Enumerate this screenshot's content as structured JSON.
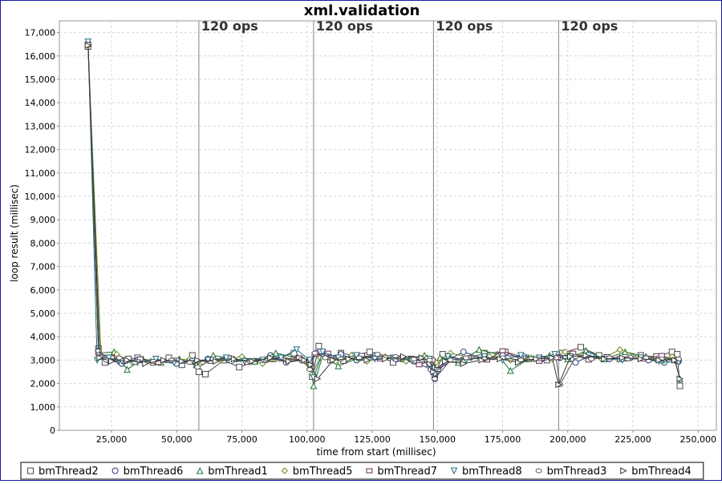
{
  "chart_data": {
    "type": "line",
    "title": "xml.validation",
    "xlabel": "time from start (millisec)",
    "ylabel": "loop result (millisec)",
    "xlim": [
      5000,
      257000
    ],
    "ylim": [
      0,
      17500
    ],
    "x_ticks": [
      25000,
      50000,
      75000,
      100000,
      125000,
      150000,
      175000,
      200000,
      225000,
      250000
    ],
    "x_tick_labels": [
      "25,000",
      "50,000",
      "75,000",
      "100,000",
      "125,000",
      "150,000",
      "175,000",
      "200,000",
      "225,000",
      "250,000"
    ],
    "y_ticks": [
      0,
      1000,
      2000,
      3000,
      4000,
      5000,
      6000,
      7000,
      8000,
      9000,
      10000,
      11000,
      12000,
      13000,
      14000,
      15000,
      16000,
      17000
    ],
    "y_tick_labels": [
      "0",
      "1,000",
      "2,000",
      "3,000",
      "4,000",
      "5,000",
      "6,000",
      "7,000",
      "8,000",
      "9,000",
      "10,000",
      "11,000",
      "12,000",
      "13,000",
      "14,000",
      "15,000",
      "16,000",
      "17,000"
    ],
    "grid": true,
    "legend_position": "bottom",
    "markers": [
      {
        "x": 58500,
        "label": "120 ops"
      },
      {
        "x": 102500,
        "label": "120 ops"
      },
      {
        "x": 148500,
        "label": "120 ops"
      },
      {
        "x": 196500,
        "label": "120 ops"
      }
    ],
    "series": [
      {
        "name": "bmThread2",
        "marker": "square",
        "color": "#4a4a4a",
        "x": [
          16000,
          20000,
          22500,
          25500,
          28500,
          31500,
          35000,
          41000,
          47000,
          52000,
          56000,
          58500,
          61000,
          68000,
          74000,
          80000,
          87000,
          95000,
          101000,
          102000,
          104500,
          109000,
          113000,
          118000,
          124000,
          133000,
          140000,
          147000,
          149000,
          152000,
          160000,
          168000,
          176000,
          184000,
          192000,
          198000,
          205000,
          212000,
          220000,
          228000,
          234000,
          240000,
          242000,
          243000
        ],
        "y": [
          16400,
          3500,
          2900,
          3100,
          2950,
          3050,
          3100,
          2900,
          3100,
          2800,
          3200,
          2500,
          2400,
          3000,
          2700,
          2950,
          3050,
          3300,
          2950,
          2300,
          3600,
          3000,
          3300,
          3200,
          3350,
          2900,
          3050,
          2850,
          2300,
          3250,
          3000,
          3300,
          3350,
          3100,
          3000,
          3300,
          3550,
          3200,
          3050,
          3200,
          3150,
          3350,
          3250,
          1900
        ]
      },
      {
        "name": "bmThread6",
        "marker": "circle",
        "color": "#2a3a7a",
        "x": [
          16000,
          20000,
          24000,
          29000,
          35000,
          42000,
          50000,
          57000,
          62000,
          70000,
          78000,
          86000,
          92000,
          98000,
          101500,
          103500,
          107000,
          113000,
          119000,
          126000,
          134000,
          141000,
          147500,
          149000,
          153000,
          160000,
          168000,
          175000,
          183000,
          190000,
          197000,
          203000,
          209000,
          216000,
          224000,
          231000,
          237000,
          242500
        ],
        "y": [
          16500,
          3400,
          3000,
          2850,
          3000,
          2950,
          2850,
          2900,
          3050,
          3000,
          2950,
          3200,
          2900,
          3000,
          2850,
          3300,
          3150,
          3250,
          3000,
          3200,
          3050,
          2950,
          2600,
          2200,
          2950,
          3350,
          3050,
          3200,
          3150,
          3050,
          3100,
          2900,
          3200,
          3050,
          3100,
          3000,
          2900,
          2950
        ]
      },
      {
        "name": "bmThread1",
        "marker": "triangle-up",
        "color": "#1c6e2c",
        "x": [
          16000,
          20500,
          26000,
          31000,
          37000,
          44000,
          51000,
          57500,
          64000,
          72000,
          80000,
          88000,
          96000,
          101000,
          102500,
          106000,
          112000,
          120000,
          128000,
          137000,
          145000,
          148500,
          151000,
          158000,
          166000,
          173000,
          178000,
          185000,
          193000,
          200000,
          207000,
          214000,
          222000,
          230000,
          236000,
          241000,
          243000
        ],
        "y": [
          16550,
          3300,
          3350,
          2600,
          3050,
          2900,
          3050,
          2800,
          3200,
          3050,
          2950,
          3300,
          3100,
          3000,
          1900,
          3200,
          2750,
          3100,
          3150,
          3050,
          3200,
          2700,
          3100,
          2900,
          3450,
          3250,
          2550,
          3050,
          3200,
          3050,
          3400,
          3050,
          3350,
          3150,
          3000,
          3050,
          2200
        ]
      },
      {
        "name": "bmThread5",
        "marker": "diamond",
        "color": "#6f8a23",
        "x": [
          16000,
          21000,
          27000,
          33000,
          40000,
          48000,
          55000,
          60000,
          67000,
          75000,
          83000,
          91000,
          99000,
          102000,
          105000,
          111000,
          117000,
          123000,
          130000,
          138000,
          146000,
          149500,
          155000,
          163000,
          170000,
          178000,
          186000,
          194000,
          199000,
          206000,
          213000,
          220000,
          227000,
          234000,
          240000,
          242500
        ],
        "y": [
          16450,
          3200,
          3250,
          2900,
          2950,
          3000,
          3050,
          2900,
          3000,
          3150,
          2850,
          3100,
          2950,
          2400,
          3100,
          2950,
          3200,
          2950,
          3150,
          2950,
          3100,
          2900,
          3300,
          3100,
          3150,
          3000,
          3100,
          3050,
          3350,
          3200,
          3050,
          3450,
          3150,
          3000,
          3150,
          3000
        ]
      },
      {
        "name": "bmThread7",
        "marker": "rect-flat",
        "color": "#6a2a4a",
        "x": [
          16000,
          20000,
          25000,
          30000,
          36000,
          43000,
          50000,
          56000,
          63000,
          70000,
          77000,
          84000,
          90000,
          97000,
          101000,
          103000,
          108000,
          114000,
          121000,
          128000,
          136000,
          143000,
          148000,
          150000,
          156000,
          162000,
          169000,
          175000,
          182000,
          189000,
          196000,
          202000,
          208000,
          215000,
          222000,
          229000,
          236000,
          242000
        ],
        "y": [
          16500,
          3300,
          3100,
          2950,
          3050,
          2900,
          3000,
          2950,
          2950,
          3100,
          2900,
          3000,
          3050,
          3100,
          2900,
          3250,
          3300,
          2950,
          3200,
          3050,
          3100,
          2800,
          3000,
          2600,
          3000,
          3100,
          3000,
          3400,
          3050,
          2950,
          3100,
          3300,
          3000,
          3150,
          3050,
          3050,
          3200,
          2950
        ]
      },
      {
        "name": "bmThread8",
        "marker": "triangle-down",
        "color": "#1f6a80",
        "x": [
          16000,
          19500,
          24000,
          29000,
          35000,
          42000,
          49000,
          56000,
          62000,
          69000,
          76000,
          83000,
          90000,
          96000,
          101000,
          102500,
          106000,
          112000,
          119000,
          126000,
          133000,
          140000,
          147000,
          149000,
          154000,
          161000,
          168000,
          175000,
          182000,
          189000,
          195000,
          201000,
          208000,
          215000,
          221000,
          228000,
          235000,
          242500
        ],
        "y": [
          16600,
          3000,
          3100,
          2950,
          2900,
          3050,
          2900,
          2950,
          3000,
          3100,
          2950,
          3000,
          3100,
          3450,
          3000,
          2250,
          3350,
          3100,
          3200,
          3050,
          3100,
          3000,
          3050,
          2400,
          3150,
          3000,
          3150,
          3000,
          3200,
          3100,
          3250,
          3150,
          3200,
          3050,
          3000,
          3100,
          2950,
          2900
        ]
      },
      {
        "name": "bmThread3",
        "marker": "circle-small",
        "color": "#555555",
        "x": [
          16000,
          20000,
          23000,
          28000,
          34000,
          41000,
          48000,
          55000,
          58000,
          64000,
          71000,
          78000,
          85000,
          92000,
          98000,
          101000,
          103000,
          107000,
          113000,
          120000,
          127000,
          134000,
          141000,
          147000,
          149000,
          155000,
          161000,
          168000,
          175000,
          182000,
          189000,
          195500,
          197000,
          203000,
          209000,
          216000,
          223000,
          230000,
          236000,
          242500
        ],
        "y": [
          16500,
          3400,
          3000,
          3100,
          2900,
          2950,
          3000,
          2900,
          2700,
          3050,
          2950,
          2950,
          3050,
          3000,
          3050,
          2600,
          3300,
          3100,
          3050,
          3100,
          3250,
          3150,
          3050,
          3000,
          2200,
          3000,
          3100,
          3050,
          3100,
          3000,
          3050,
          3100,
          1950,
          3150,
          3050,
          3100,
          3050,
          3100,
          3050,
          3050
        ]
      },
      {
        "name": "bmThread4",
        "marker": "triangle-right",
        "color": "#3a3a3a",
        "x": [
          16000,
          20500,
          25000,
          31000,
          38000,
          45000,
          52000,
          58000,
          65000,
          72000,
          79000,
          86000,
          93000,
          99000,
          101500,
          104000,
          110000,
          116000,
          123000,
          130000,
          137000,
          144000,
          148500,
          153000,
          160000,
          167000,
          174000,
          181000,
          188000,
          194000,
          196500,
          201000,
          207000,
          214000,
          221000,
          228000,
          235000,
          241000,
          243000
        ],
        "y": [
          16450,
          3100,
          2950,
          3000,
          2850,
          3000,
          2950,
          3000,
          2950,
          3050,
          2950,
          3100,
          2950,
          3000,
          2800,
          2200,
          3000,
          3050,
          3000,
          3050,
          3150,
          3100,
          2500,
          2950,
          2850,
          3000,
          3050,
          2900,
          3050,
          3100,
          1950,
          3150,
          3200,
          3050,
          3100,
          3050,
          3000,
          3000,
          2200
        ]
      }
    ]
  }
}
